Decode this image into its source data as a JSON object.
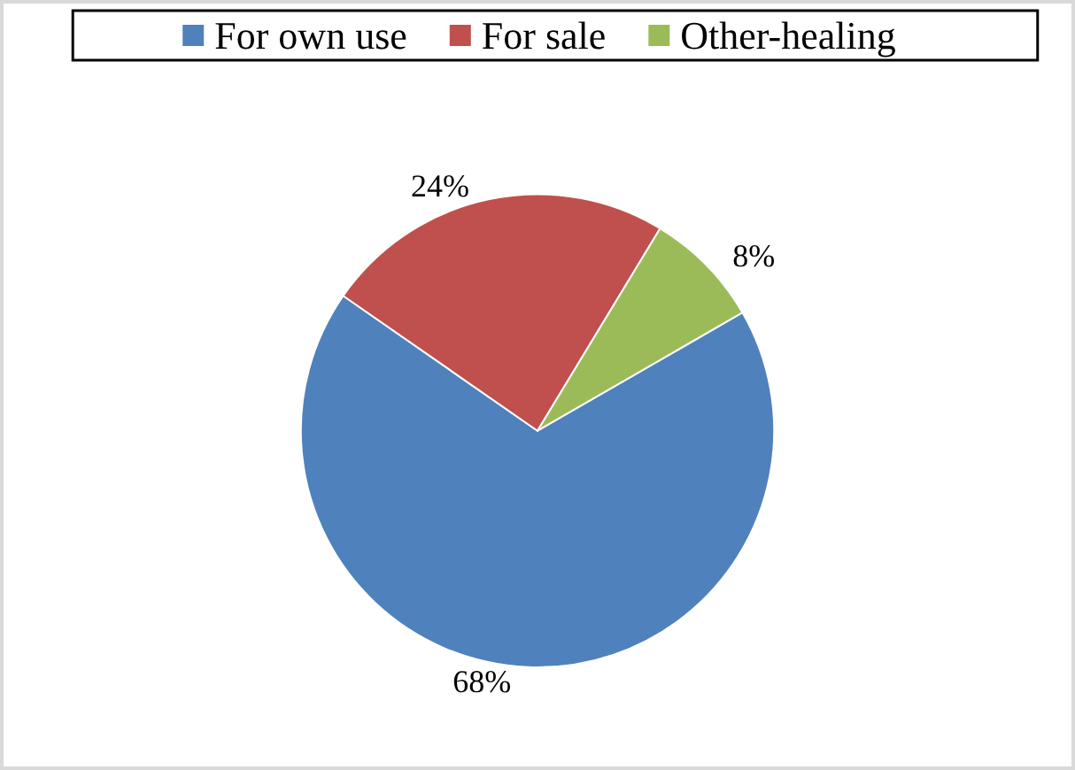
{
  "chart_data": {
    "type": "pie",
    "categories": [
      "For own use",
      "For sale",
      "Other-healing"
    ],
    "values": [
      68,
      24,
      8
    ],
    "colors": [
      "#4f81bd",
      "#c0504d",
      "#9bbb59"
    ],
    "value_labels": [
      "68%",
      "24%",
      "8%"
    ],
    "legend": "top"
  }
}
